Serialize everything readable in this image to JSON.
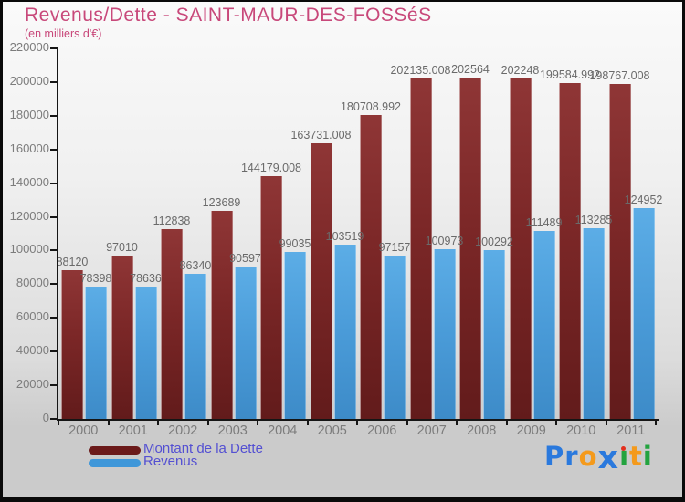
{
  "title": "Revenus/Dette - SAINT-MAUR-DES-FOSSéS",
  "subtitle": "(en milliers d'€)",
  "chart_data": {
    "type": "bar",
    "title": "Revenus/Dette - SAINT-MAUR-DES-FOSSéS",
    "subtitle": "(en milliers d'€)",
    "categories": [
      "2000",
      "2001",
      "2002",
      "2003",
      "2004",
      "2005",
      "2006",
      "2007",
      "2008",
      "2009",
      "2010",
      "2011"
    ],
    "series": [
      {
        "name": "Montant de la Dette",
        "color": "#7b2727",
        "values": [
          88120,
          97010,
          112838,
          123689,
          144179.008,
          163731.008,
          180708.992,
          202135.008,
          202564,
          202248,
          199584.992,
          198767.008
        ],
        "labels": [
          "88120",
          "97010",
          "112838",
          "123689",
          "144179.008",
          "163731.008",
          "180708.992",
          "202135.008",
          "202564",
          "202248",
          "199584.992",
          "198767.008"
        ]
      },
      {
        "name": "Revenus",
        "color": "#4a9bd8",
        "values": [
          78398,
          78636,
          86340,
          90597,
          99035,
          103519,
          97157,
          100973,
          100292,
          111489,
          113285,
          124952
        ],
        "labels": [
          "78398",
          "78636",
          "86340",
          "90597",
          "99035",
          "103519",
          "97157",
          "100973",
          "100292",
          "111489",
          "113285",
          "124952"
        ]
      }
    ],
    "xlabel": "",
    "ylabel": "",
    "ylim": [
      0,
      220000
    ],
    "ytick_step": 20000,
    "yticks": [
      {
        "value": 0,
        "label": "0"
      },
      {
        "value": 20000,
        "label": "20000"
      },
      {
        "value": 40000,
        "label": "40000"
      },
      {
        "value": 60000,
        "label": "60000"
      },
      {
        "value": 80000,
        "label": "80000"
      },
      {
        "value": 100000,
        "label": "100000"
      },
      {
        "value": 120000,
        "label": "120000"
      },
      {
        "value": 140000,
        "label": "140000"
      },
      {
        "value": 160000,
        "label": "160000"
      },
      {
        "value": 180000,
        "label": "180000"
      },
      {
        "value": 200000,
        "label": "200000"
      },
      {
        "value": 220000,
        "label": "220000"
      }
    ],
    "grid": false,
    "legend_position": "bottom-left",
    "bar_label_color": "#6a6a6a",
    "axis_label_color": "#7c7c7c"
  },
  "colors": {
    "title": "#c8487a",
    "legend_text": "#5450d2",
    "dette_bar": "#7b2727",
    "revenus_bar": "#4a9bd8",
    "axis": "#151515",
    "frame_border": "#0a0a0a"
  },
  "logo": {
    "text": "Proxiti",
    "letters": [
      {
        "ch": "P",
        "color": "#2a79dd"
      },
      {
        "ch": "r",
        "color": "#2a79dd"
      },
      {
        "ch": "o",
        "color": "#f49a1c"
      },
      {
        "ch": "x",
        "color": "#2a79dd",
        "large": true
      },
      {
        "ch": "i",
        "color": "#23a33f",
        "dot": "#e32f1d"
      },
      {
        "ch": "t",
        "color": "#f49a1c"
      },
      {
        "ch": "i",
        "color": "#23a33f"
      }
    ]
  }
}
